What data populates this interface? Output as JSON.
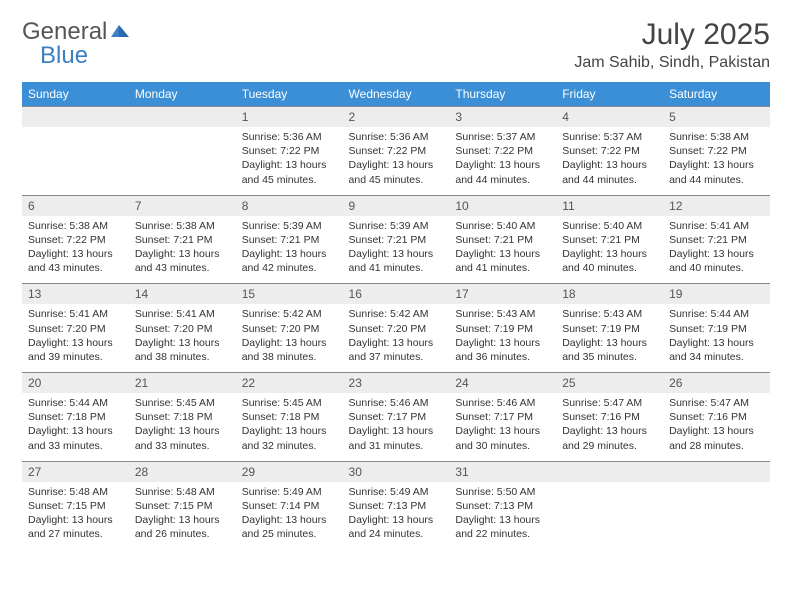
{
  "brand": {
    "part1": "General",
    "part2": "Blue"
  },
  "title": "July 2025",
  "location": "Jam Sahib, Sindh, Pakistan",
  "colors": {
    "header_bg": "#3b8fd6",
    "header_text": "#ffffff",
    "daynum_bg": "#ededed",
    "border": "#888888",
    "brand_blue": "#3b7fc4"
  },
  "dow": [
    "Sunday",
    "Monday",
    "Tuesday",
    "Wednesday",
    "Thursday",
    "Friday",
    "Saturday"
  ],
  "weeks": [
    [
      {
        "n": "",
        "sr": "",
        "ss": "",
        "dl": ""
      },
      {
        "n": "",
        "sr": "",
        "ss": "",
        "dl": ""
      },
      {
        "n": "1",
        "sr": "Sunrise: 5:36 AM",
        "ss": "Sunset: 7:22 PM",
        "dl": "Daylight: 13 hours and 45 minutes."
      },
      {
        "n": "2",
        "sr": "Sunrise: 5:36 AM",
        "ss": "Sunset: 7:22 PM",
        "dl": "Daylight: 13 hours and 45 minutes."
      },
      {
        "n": "3",
        "sr": "Sunrise: 5:37 AM",
        "ss": "Sunset: 7:22 PM",
        "dl": "Daylight: 13 hours and 44 minutes."
      },
      {
        "n": "4",
        "sr": "Sunrise: 5:37 AM",
        "ss": "Sunset: 7:22 PM",
        "dl": "Daylight: 13 hours and 44 minutes."
      },
      {
        "n": "5",
        "sr": "Sunrise: 5:38 AM",
        "ss": "Sunset: 7:22 PM",
        "dl": "Daylight: 13 hours and 44 minutes."
      }
    ],
    [
      {
        "n": "6",
        "sr": "Sunrise: 5:38 AM",
        "ss": "Sunset: 7:22 PM",
        "dl": "Daylight: 13 hours and 43 minutes."
      },
      {
        "n": "7",
        "sr": "Sunrise: 5:38 AM",
        "ss": "Sunset: 7:21 PM",
        "dl": "Daylight: 13 hours and 43 minutes."
      },
      {
        "n": "8",
        "sr": "Sunrise: 5:39 AM",
        "ss": "Sunset: 7:21 PM",
        "dl": "Daylight: 13 hours and 42 minutes."
      },
      {
        "n": "9",
        "sr": "Sunrise: 5:39 AM",
        "ss": "Sunset: 7:21 PM",
        "dl": "Daylight: 13 hours and 41 minutes."
      },
      {
        "n": "10",
        "sr": "Sunrise: 5:40 AM",
        "ss": "Sunset: 7:21 PM",
        "dl": "Daylight: 13 hours and 41 minutes."
      },
      {
        "n": "11",
        "sr": "Sunrise: 5:40 AM",
        "ss": "Sunset: 7:21 PM",
        "dl": "Daylight: 13 hours and 40 minutes."
      },
      {
        "n": "12",
        "sr": "Sunrise: 5:41 AM",
        "ss": "Sunset: 7:21 PM",
        "dl": "Daylight: 13 hours and 40 minutes."
      }
    ],
    [
      {
        "n": "13",
        "sr": "Sunrise: 5:41 AM",
        "ss": "Sunset: 7:20 PM",
        "dl": "Daylight: 13 hours and 39 minutes."
      },
      {
        "n": "14",
        "sr": "Sunrise: 5:41 AM",
        "ss": "Sunset: 7:20 PM",
        "dl": "Daylight: 13 hours and 38 minutes."
      },
      {
        "n": "15",
        "sr": "Sunrise: 5:42 AM",
        "ss": "Sunset: 7:20 PM",
        "dl": "Daylight: 13 hours and 38 minutes."
      },
      {
        "n": "16",
        "sr": "Sunrise: 5:42 AM",
        "ss": "Sunset: 7:20 PM",
        "dl": "Daylight: 13 hours and 37 minutes."
      },
      {
        "n": "17",
        "sr": "Sunrise: 5:43 AM",
        "ss": "Sunset: 7:19 PM",
        "dl": "Daylight: 13 hours and 36 minutes."
      },
      {
        "n": "18",
        "sr": "Sunrise: 5:43 AM",
        "ss": "Sunset: 7:19 PM",
        "dl": "Daylight: 13 hours and 35 minutes."
      },
      {
        "n": "19",
        "sr": "Sunrise: 5:44 AM",
        "ss": "Sunset: 7:19 PM",
        "dl": "Daylight: 13 hours and 34 minutes."
      }
    ],
    [
      {
        "n": "20",
        "sr": "Sunrise: 5:44 AM",
        "ss": "Sunset: 7:18 PM",
        "dl": "Daylight: 13 hours and 33 minutes."
      },
      {
        "n": "21",
        "sr": "Sunrise: 5:45 AM",
        "ss": "Sunset: 7:18 PM",
        "dl": "Daylight: 13 hours and 33 minutes."
      },
      {
        "n": "22",
        "sr": "Sunrise: 5:45 AM",
        "ss": "Sunset: 7:18 PM",
        "dl": "Daylight: 13 hours and 32 minutes."
      },
      {
        "n": "23",
        "sr": "Sunrise: 5:46 AM",
        "ss": "Sunset: 7:17 PM",
        "dl": "Daylight: 13 hours and 31 minutes."
      },
      {
        "n": "24",
        "sr": "Sunrise: 5:46 AM",
        "ss": "Sunset: 7:17 PM",
        "dl": "Daylight: 13 hours and 30 minutes."
      },
      {
        "n": "25",
        "sr": "Sunrise: 5:47 AM",
        "ss": "Sunset: 7:16 PM",
        "dl": "Daylight: 13 hours and 29 minutes."
      },
      {
        "n": "26",
        "sr": "Sunrise: 5:47 AM",
        "ss": "Sunset: 7:16 PM",
        "dl": "Daylight: 13 hours and 28 minutes."
      }
    ],
    [
      {
        "n": "27",
        "sr": "Sunrise: 5:48 AM",
        "ss": "Sunset: 7:15 PM",
        "dl": "Daylight: 13 hours and 27 minutes."
      },
      {
        "n": "28",
        "sr": "Sunrise: 5:48 AM",
        "ss": "Sunset: 7:15 PM",
        "dl": "Daylight: 13 hours and 26 minutes."
      },
      {
        "n": "29",
        "sr": "Sunrise: 5:49 AM",
        "ss": "Sunset: 7:14 PM",
        "dl": "Daylight: 13 hours and 25 minutes."
      },
      {
        "n": "30",
        "sr": "Sunrise: 5:49 AM",
        "ss": "Sunset: 7:13 PM",
        "dl": "Daylight: 13 hours and 24 minutes."
      },
      {
        "n": "31",
        "sr": "Sunrise: 5:50 AM",
        "ss": "Sunset: 7:13 PM",
        "dl": "Daylight: 13 hours and 22 minutes."
      },
      {
        "n": "",
        "sr": "",
        "ss": "",
        "dl": ""
      },
      {
        "n": "",
        "sr": "",
        "ss": "",
        "dl": ""
      }
    ]
  ]
}
